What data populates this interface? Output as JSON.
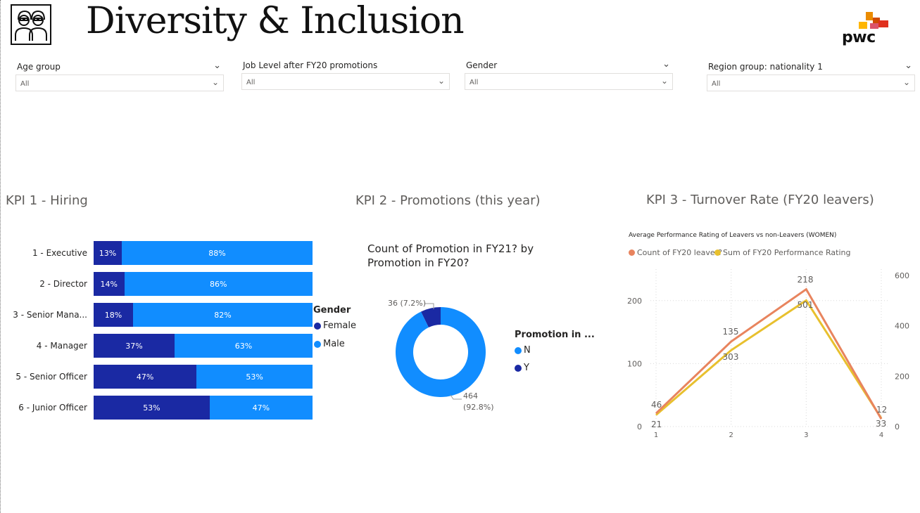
{
  "header": {
    "title": "Diversity & Inclusion",
    "brand": "pwc"
  },
  "filters": [
    {
      "label": "Age group",
      "value": "All"
    },
    {
      "label": "Job Level after FY20 promotions",
      "value": "All"
    },
    {
      "label": "Gender",
      "value": "All"
    },
    {
      "label": "Region group: nationality 1",
      "value": "All"
    }
  ],
  "kpi1": {
    "title": "KPI 1 - Hiring",
    "legend_title": "Gender",
    "legend": [
      "Female",
      "Male"
    ],
    "colors": {
      "female": "#1a29a3",
      "male": "#118dff"
    },
    "chart_data": {
      "type": "bar",
      "categories": [
        "1 - Executive",
        "2 - Director",
        "3 - Senior Mana...",
        "4 - Manager",
        "5 - Senior Officer",
        "6 - Junior Officer"
      ],
      "series": [
        {
          "name": "Female",
          "values": [
            13,
            14,
            18,
            37,
            47,
            53
          ],
          "labels": [
            "13%",
            "14%",
            "18%",
            "37%",
            "47%",
            "53%"
          ]
        },
        {
          "name": "Male",
          "values": [
            88,
            86,
            82,
            63,
            53,
            47
          ],
          "labels": [
            "88%",
            "86%",
            "82%",
            "63%",
            "53%",
            "47%"
          ]
        }
      ]
    }
  },
  "kpi2": {
    "title": "KPI 2 - Promotions (this year)",
    "chart_title": "Count of Promotion in FY21? by Promotion in FY20?",
    "legend_title": "Promotion in ...",
    "legend": [
      "N",
      "Y"
    ],
    "colors": {
      "N": "#118dff",
      "Y": "#1a29a3"
    },
    "chart_data": {
      "type": "pie",
      "categories": [
        "N",
        "Y"
      ],
      "values": [
        464,
        36
      ],
      "labels": [
        "464",
        "(92.8%)",
        "36 (7.2%)"
      ]
    }
  },
  "kpi3": {
    "title": "KPI 3 - Turnover Rate (FY20 leavers)",
    "chart_title": "Average Performance Rating of Leavers vs non-Leavers (WOMEN)",
    "legend": [
      "Count of FY20 leaver?",
      "Sum of FY20 Performance Rating"
    ],
    "colors": {
      "count": "#e8845e",
      "sum": "#e8c02e"
    },
    "chart_data": {
      "type": "line",
      "x": [
        1,
        2,
        3,
        4
      ],
      "x_ticks": [
        "1",
        "2",
        "3",
        "4"
      ],
      "y_left_ticks": [
        "0",
        "100",
        "200"
      ],
      "y_right_ticks": [
        "0",
        "200",
        "400",
        "600"
      ],
      "ylim_left": [
        0,
        250
      ],
      "ylim_right": [
        0,
        625
      ],
      "series": [
        {
          "name": "Count of FY20 leaver?",
          "axis": "left",
          "values": [
            21,
            135,
            218,
            12
          ],
          "labels": [
            "21",
            "135",
            "218",
            "12"
          ]
        },
        {
          "name": "Sum of FY20 Performance Rating",
          "axis": "right",
          "values": [
            46,
            303,
            501,
            33
          ],
          "labels": [
            "46",
            "303",
            "501",
            "33"
          ]
        }
      ]
    }
  }
}
